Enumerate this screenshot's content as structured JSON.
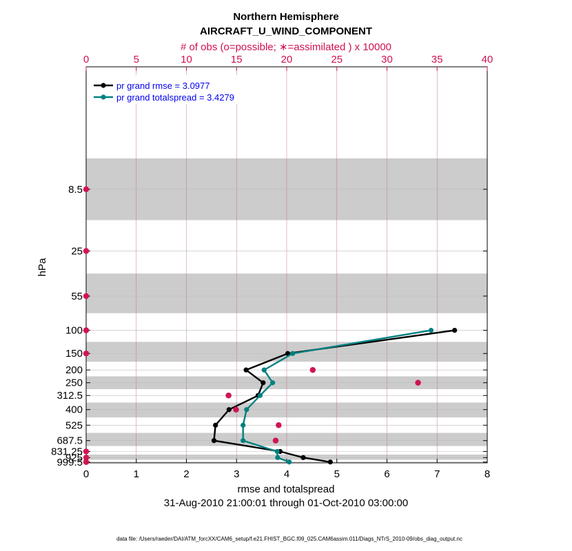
{
  "colors": {
    "rmse": "#000000",
    "spread": "#008080",
    "obs": "#d0104c",
    "band": "#cccccc",
    "legend_text": "#0000ee"
  },
  "chart_data": {
    "type": "line",
    "title": "Northern Hemisphere",
    "subtitle": "AIRCRAFT_U_WIND_COMPONENT",
    "top_axis_label": "# of obs (o=possible; ∗=assimilated ) x 10000",
    "xlabel": "rmse and totalspread",
    "ylabel": "hPa",
    "date_range": "31-Aug-2010 21:00:01 through 01-Oct-2010 03:00:00",
    "footnote": "data file: /Users/raeder/DAI/ATM_forcXX/CAM6_setup/f.e21.FHIST_BGC.f09_025.CAM6assim.011/Diags_NTrS_2010-09/obs_diag_output.nc",
    "xlim": [
      0,
      8
    ],
    "xticks": [
      "0",
      "1",
      "2",
      "3",
      "4",
      "5",
      "6",
      "7",
      "8"
    ],
    "top_xlim": [
      0,
      40
    ],
    "top_xticks": [
      "0",
      "5",
      "10",
      "15",
      "20",
      "25",
      "30",
      "35",
      "40"
    ],
    "levels": [
      8.5,
      25,
      55,
      100,
      150,
      200,
      250,
      312.5,
      400,
      525,
      687.5,
      831.25,
      925,
      999.5
    ],
    "level_labels": [
      "8.5",
      "25",
      "55",
      "100",
      "150",
      "200",
      "250",
      "312.5",
      "400",
      "525",
      "687.5",
      "831.25",
      "925",
      "999.5"
    ],
    "series": [
      {
        "name": "pr grand rmse = 3.0977",
        "levels": [
          100,
          150,
          200,
          250,
          312.5,
          400,
          525,
          687.5,
          831.25,
          925,
          999.5
        ],
        "values": [
          7.35,
          4.02,
          3.19,
          3.53,
          3.43,
          2.85,
          2.58,
          2.55,
          3.87,
          4.33,
          4.87
        ]
      },
      {
        "name": "pr grand totalspread = 3.4279",
        "levels": [
          100,
          150,
          200,
          250,
          312.5,
          400,
          525,
          687.5,
          831.25,
          925,
          999.5
        ],
        "values": [
          6.88,
          4.12,
          3.55,
          3.72,
          3.47,
          3.2,
          3.13,
          3.13,
          3.81,
          3.82,
          4.05
        ]
      }
    ],
    "obs_possible": {
      "levels": [
        8.5,
        25,
        55,
        100,
        150,
        200,
        250,
        312.5,
        400,
        525,
        687.5,
        831.25,
        925,
        999.5
      ],
      "values": [
        0,
        0,
        0,
        0,
        0,
        22.6,
        33.1,
        14.2,
        14.95,
        19.2,
        18.9,
        0,
        0,
        0
      ]
    },
    "obs_assimilated": {
      "levels": [
        8.5,
        25,
        55,
        100,
        150,
        200,
        250,
        312.5,
        400,
        525,
        687.5,
        831.25,
        925,
        999.5
      ],
      "values": [
        0,
        0,
        0,
        0,
        0,
        22.6,
        33.1,
        14.2,
        14.95,
        19.2,
        18.9,
        0,
        0,
        0
      ]
    },
    "shaded_levels": [
      8.5,
      55,
      150,
      250,
      400,
      687.5,
      925
    ],
    "legend_location": "top-left",
    "grid": true
  }
}
